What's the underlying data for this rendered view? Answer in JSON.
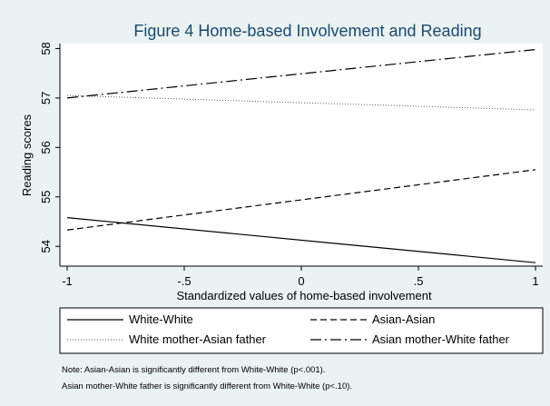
{
  "chart_data": {
    "type": "line",
    "title": "Figure 4 Home-based Involvement and Reading",
    "xlabel": "Standardized values of home-based involvement",
    "ylabel": "Reading scores",
    "xlim": [
      -1,
      1
    ],
    "ylim": [
      53.6,
      58.1
    ],
    "x_ticks": [
      "-1",
      "-.5",
      "0",
      ".5",
      "1"
    ],
    "y_ticks": [
      "54",
      "55",
      "56",
      "57",
      "58"
    ],
    "grid": false,
    "legend_position": "bottom",
    "series": [
      {
        "name": "White-White",
        "style": "solid",
        "x": [
          -1,
          1
        ],
        "y": [
          54.58,
          53.67
        ]
      },
      {
        "name": "Asian-Asian",
        "style": "dashed",
        "x": [
          -1,
          1
        ],
        "y": [
          54.33,
          55.55
        ]
      },
      {
        "name": "White mother-Asian father",
        "style": "dotted",
        "x": [
          -1,
          1
        ],
        "y": [
          57.05,
          56.76
        ]
      },
      {
        "name": "Asian mother-White father",
        "style": "dashdot",
        "x": [
          -1,
          1
        ],
        "y": [
          57.0,
          57.98
        ]
      }
    ],
    "notes": [
      "Note: Asian-Asian is significantly different from White-White (p<.001).",
      "Asian mother-White father is significantly different from White-White (p<.10)."
    ]
  },
  "colors": {
    "background": "#eaf2f3",
    "plot_area": "#ffffff",
    "title": "#1a4a6e",
    "line": "#000000"
  }
}
